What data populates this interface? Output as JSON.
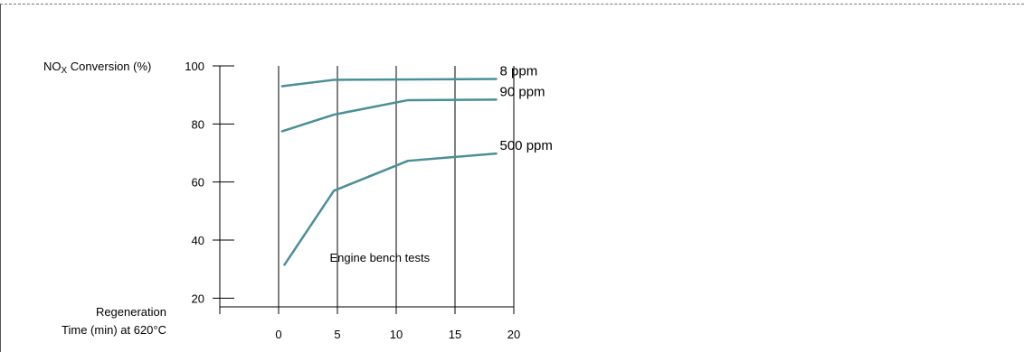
{
  "chart_data": {
    "type": "line",
    "ylabel_main": "NO",
    "ylabel_sub": "X",
    "ylabel_rest": " Conversion (%)",
    "xlabel_line1": "Regeneration",
    "xlabel_line2": "Time (min) at 620°C",
    "annotation": "Engine bench tests",
    "xlim": [
      -5,
      20
    ],
    "ylim": [
      17,
      100
    ],
    "x_ticks": [
      0,
      5,
      10,
      15,
      20
    ],
    "x_tick_labels": [
      "0",
      "5",
      "10",
      "15",
      "20"
    ],
    "y_ticks": [
      20,
      40,
      60,
      80,
      100
    ],
    "y_tick_labels": [
      "20",
      "40",
      "60",
      "80",
      "100"
    ],
    "grid": "vertical",
    "line_color": "#4a8f95",
    "series": [
      {
        "name": "8 ppm",
        "x": [
          0.3,
          4.7,
          18.5
        ],
        "y": [
          93,
          95.2,
          95.5
        ]
      },
      {
        "name": "90 ppm",
        "x": [
          0.3,
          4.7,
          11,
          18.5
        ],
        "y": [
          77.5,
          83.2,
          88.2,
          88.4
        ]
      },
      {
        "name": "500 ppm",
        "x": [
          0.5,
          4.7,
          11,
          18.5
        ],
        "y": [
          31.5,
          57,
          67.3,
          69.8
        ]
      }
    ]
  }
}
